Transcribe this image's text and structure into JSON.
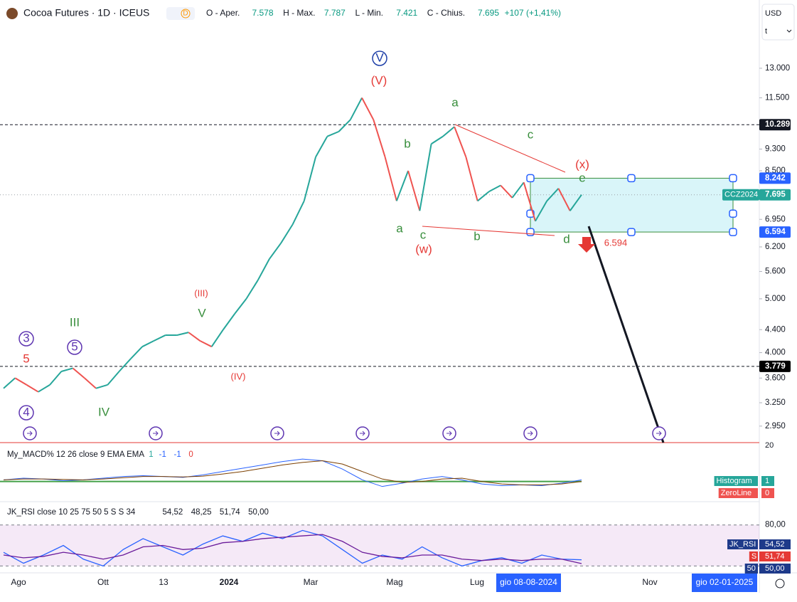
{
  "header": {
    "title": "Cocoa Futures · 1D · ICEUS",
    "badge": "D",
    "ohlc": [
      {
        "label": "O - Aper.",
        "value": "7.578"
      },
      {
        "label": "H - Max.",
        "value": "7.787"
      },
      {
        "label": "L - Min.",
        "value": "7.421"
      },
      {
        "label": "C - Chius.",
        "value": "7.695"
      }
    ],
    "change": "+107 (+1,41%)",
    "currency": "USD",
    "unit": "t"
  },
  "chart_data": {
    "type": "line",
    "log_scale": true,
    "up_color": "#26a69a",
    "down_color": "#ef5350",
    "values": [
      3450,
      3600,
      3500,
      3400,
      3500,
      3700,
      3750,
      3600,
      3450,
      3500,
      3700,
      3900,
      4100,
      4200,
      4300,
      4300,
      4350,
      4200,
      4100,
      4400,
      4700,
      5000,
      5400,
      5900,
      6300,
      6800,
      7500,
      9000,
      9800,
      10000,
      10500,
      11500,
      10500,
      9000,
      7500,
      8500,
      7200,
      9500,
      9800,
      10200,
      9000,
      7500,
      7800,
      8000,
      7600,
      8100,
      6900,
      7500,
      7900,
      7200,
      7695
    ],
    "ylim": [
      2755,
      17250
    ],
    "yticks": [
      {
        "value": 13000,
        "label": "13.000"
      },
      {
        "value": 11500,
        "label": "11.500"
      },
      {
        "value": 9300,
        "label": "9.300"
      },
      {
        "value": 8500,
        "label": "8.500"
      },
      {
        "value": 6950,
        "label": "6.950"
      },
      {
        "value": 6200,
        "label": "6.200"
      },
      {
        "value": 5600,
        "label": "5.600"
      },
      {
        "value": 5000,
        "label": "5.000"
      },
      {
        "value": 4400,
        "label": "4.400"
      },
      {
        "value": 4000,
        "label": "4.000"
      },
      {
        "value": 3600,
        "label": "3.600"
      },
      {
        "value": 3250,
        "label": "3.250"
      },
      {
        "value": 2950,
        "label": "2.950"
      }
    ],
    "price_levels": [
      {
        "value": 10289,
        "label": "10.289",
        "color": "#131722",
        "style": "dashed"
      },
      {
        "value": 8242,
        "label": "8.242",
        "color": "#2962ff",
        "style": "box"
      },
      {
        "value": 7695,
        "label": "7.695",
        "color": "#26a69a",
        "style": "dotted"
      },
      {
        "value": 6594,
        "label": "6.594",
        "color": "#2962ff",
        "style": "box"
      },
      {
        "value": 3779,
        "label": "3.779",
        "color": "#000000",
        "style": "dashed"
      }
    ],
    "symbol_label": "CCZ2024",
    "x_labels": [
      "Ago",
      "Ott",
      "13",
      "2024",
      "Mar",
      "Mag",
      "Lug",
      "Nov"
    ],
    "crosshair_labels": [
      "gio 08-08-2024",
      "gio 02-01-2025"
    ],
    "annotations": [
      {
        "text": "V",
        "color": "#1e3fa8",
        "circled": true
      },
      {
        "text": "(V)",
        "color": "#e53935"
      },
      {
        "text": "a",
        "color": "#388e3c"
      },
      {
        "text": "b",
        "color": "#388e3c"
      },
      {
        "text": "c",
        "color": "#388e3c"
      },
      {
        "text": "(x)",
        "color": "#e53935"
      },
      {
        "text": "e",
        "color": "#388e3c"
      },
      {
        "text": "a",
        "color": "#388e3c"
      },
      {
        "text": "c",
        "color": "#388e3c"
      },
      {
        "text": "(w)",
        "color": "#e53935"
      },
      {
        "text": "b",
        "color": "#388e3c"
      },
      {
        "text": "d",
        "color": "#388e3c"
      },
      {
        "text": "6.594",
        "color": "#e53935"
      },
      {
        "text": "(III)",
        "color": "#e53935"
      },
      {
        "text": "V",
        "color": "#388e3c"
      },
      {
        "text": "(IV)",
        "color": "#e53935"
      },
      {
        "text": "III",
        "color": "#388e3c"
      },
      {
        "text": "IV",
        "color": "#388e3c"
      },
      {
        "text": "3",
        "color": "#5e35b1",
        "circled": true
      },
      {
        "text": "5",
        "color": "#e53935"
      },
      {
        "text": "5",
        "color": "#5e35b1",
        "circled": true
      },
      {
        "text": "4",
        "color": "#5e35b1",
        "circled": true
      }
    ],
    "macd": {
      "title": "My_MACD% 12 26 close 9 EMA EMA",
      "params": [
        "1",
        "-1",
        "-1",
        "0"
      ],
      "top_label": "20",
      "ylim": [
        -2,
        4
      ],
      "series": [
        {
          "name": "MACD",
          "color": "#2962ff",
          "values": [
            0.2,
            0.4,
            0.3,
            0.1,
            0.2,
            0.4,
            0.6,
            0.7,
            0.6,
            0.5,
            0.8,
            1.2,
            1.6,
            2.0,
            2.4,
            2.7,
            2.5,
            1.5,
            0.2,
            -0.6,
            -0.2,
            0.3,
            0.6,
            0.2,
            -0.3,
            -0.5,
            -0.4,
            -0.5,
            -0.2,
            0.2
          ]
        },
        {
          "name": "Signal",
          "color": "#7b3f00",
          "values": [
            0.2,
            0.3,
            0.3,
            0.25,
            0.2,
            0.3,
            0.45,
            0.6,
            0.6,
            0.55,
            0.65,
            0.9,
            1.2,
            1.6,
            2.0,
            2.3,
            2.5,
            2.1,
            1.2,
            0.3,
            -0.1,
            0.0,
            0.3,
            0.4,
            0.0,
            -0.3,
            -0.4,
            -0.4,
            -0.3,
            0.0
          ]
        }
      ],
      "zero": 0,
      "legend": [
        {
          "name": "Histogram",
          "value": "1",
          "color": "#26a69a"
        },
        {
          "name": "ZeroLine",
          "value": "0",
          "color": "#ef5350"
        }
      ]
    },
    "rsi": {
      "title": "JK_RSI close 10 25 75 50 5 S S 34",
      "readings": [
        "54,52",
        "48,25",
        "51,74",
        "50,00"
      ],
      "ylim": [
        45,
        97
      ],
      "yticks": [
        {
          "value": 80,
          "label": "80,00"
        }
      ],
      "band": [
        50,
        80
      ],
      "series": [
        {
          "name": "JK_RSI",
          "color": "#2962ff",
          "values": [
            60,
            52,
            58,
            65,
            55,
            50,
            62,
            70,
            64,
            58,
            66,
            72,
            68,
            74,
            70,
            76,
            72,
            62,
            52,
            58,
            55,
            64,
            56,
            50,
            54,
            56,
            52,
            58,
            55,
            54.52
          ]
        },
        {
          "name": "S",
          "color": "#6a1b9a",
          "values": [
            58,
            56,
            57,
            60,
            58,
            55,
            58,
            64,
            65,
            62,
            63,
            67,
            68,
            70,
            71,
            72,
            73,
            68,
            60,
            57,
            56,
            58,
            58,
            55,
            54,
            55,
            54,
            55,
            55,
            51.74
          ]
        }
      ],
      "legend": [
        {
          "name": "JK_RSI",
          "value": "54,52",
          "color": "#1e3a8a"
        },
        {
          "name": "S",
          "value": "51,74",
          "color": "#e53935"
        },
        {
          "name": "50",
          "value": "50,00",
          "color": "#1e3a8a"
        }
      ]
    }
  }
}
